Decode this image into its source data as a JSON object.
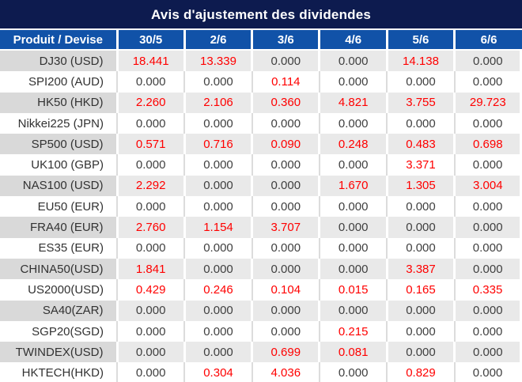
{
  "title": "Avis d'ajustement des dividendes",
  "table": {
    "columns": [
      "Produit / Devise",
      "30/5",
      "2/6",
      "3/6",
      "4/6",
      "5/6",
      "6/6"
    ],
    "rows": [
      {
        "product": "DJ30 (USD)",
        "values": [
          "18.441",
          "13.339",
          "0.000",
          "0.000",
          "14.138",
          "0.000"
        ]
      },
      {
        "product": "SPI200 (AUD)",
        "values": [
          "0.000",
          "0.000",
          "0.114",
          "0.000",
          "0.000",
          "0.000"
        ]
      },
      {
        "product": "HK50 (HKD)",
        "values": [
          "2.260",
          "2.106",
          "0.360",
          "4.821",
          "3.755",
          "29.723"
        ]
      },
      {
        "product": "Nikkei225 (JPN)",
        "values": [
          "0.000",
          "0.000",
          "0.000",
          "0.000",
          "0.000",
          "0.000"
        ]
      },
      {
        "product": "SP500 (USD)",
        "values": [
          "0.571",
          "0.716",
          "0.090",
          "0.248",
          "0.483",
          "0.698"
        ]
      },
      {
        "product": "UK100 (GBP)",
        "values": [
          "0.000",
          "0.000",
          "0.000",
          "0.000",
          "3.371",
          "0.000"
        ]
      },
      {
        "product": "NAS100 (USD)",
        "values": [
          "2.292",
          "0.000",
          "0.000",
          "1.670",
          "1.305",
          "3.004"
        ]
      },
      {
        "product": "EU50 (EUR)",
        "values": [
          "0.000",
          "0.000",
          "0.000",
          "0.000",
          "0.000",
          "0.000"
        ]
      },
      {
        "product": "FRA40 (EUR)",
        "values": [
          "2.760",
          "1.154",
          "3.707",
          "0.000",
          "0.000",
          "0.000"
        ]
      },
      {
        "product": "ES35 (EUR)",
        "values": [
          "0.000",
          "0.000",
          "0.000",
          "0.000",
          "0.000",
          "0.000"
        ]
      },
      {
        "product": "CHINA50(USD)",
        "values": [
          "1.841",
          "0.000",
          "0.000",
          "0.000",
          "3.387",
          "0.000"
        ]
      },
      {
        "product": "US2000(USD)",
        "values": [
          "0.429",
          "0.246",
          "0.104",
          "0.015",
          "0.165",
          "0.335"
        ]
      },
      {
        "product": "SA40(ZAR)",
        "values": [
          "0.000",
          "0.000",
          "0.000",
          "0.000",
          "0.000",
          "0.000"
        ]
      },
      {
        "product": "SGP20(SGD)",
        "values": [
          "0.000",
          "0.000",
          "0.000",
          "0.215",
          "0.000",
          "0.000"
        ]
      },
      {
        "product": "TWINDEX(USD)",
        "values": [
          "0.000",
          "0.000",
          "0.699",
          "0.081",
          "0.000",
          "0.000"
        ]
      },
      {
        "product": "HKTECH(HKD)",
        "values": [
          "0.000",
          "0.304",
          "4.036",
          "0.000",
          "0.829",
          "0.000"
        ]
      }
    ]
  },
  "colors": {
    "title_bg": "#0d1b4f",
    "header_bg": "#1152a8",
    "stripe_label_bg": "#d9d9d9",
    "stripe_cell_bg": "#e9e9e9",
    "positive_value": "#ff0000",
    "zero_value": "#3f3f3f"
  }
}
